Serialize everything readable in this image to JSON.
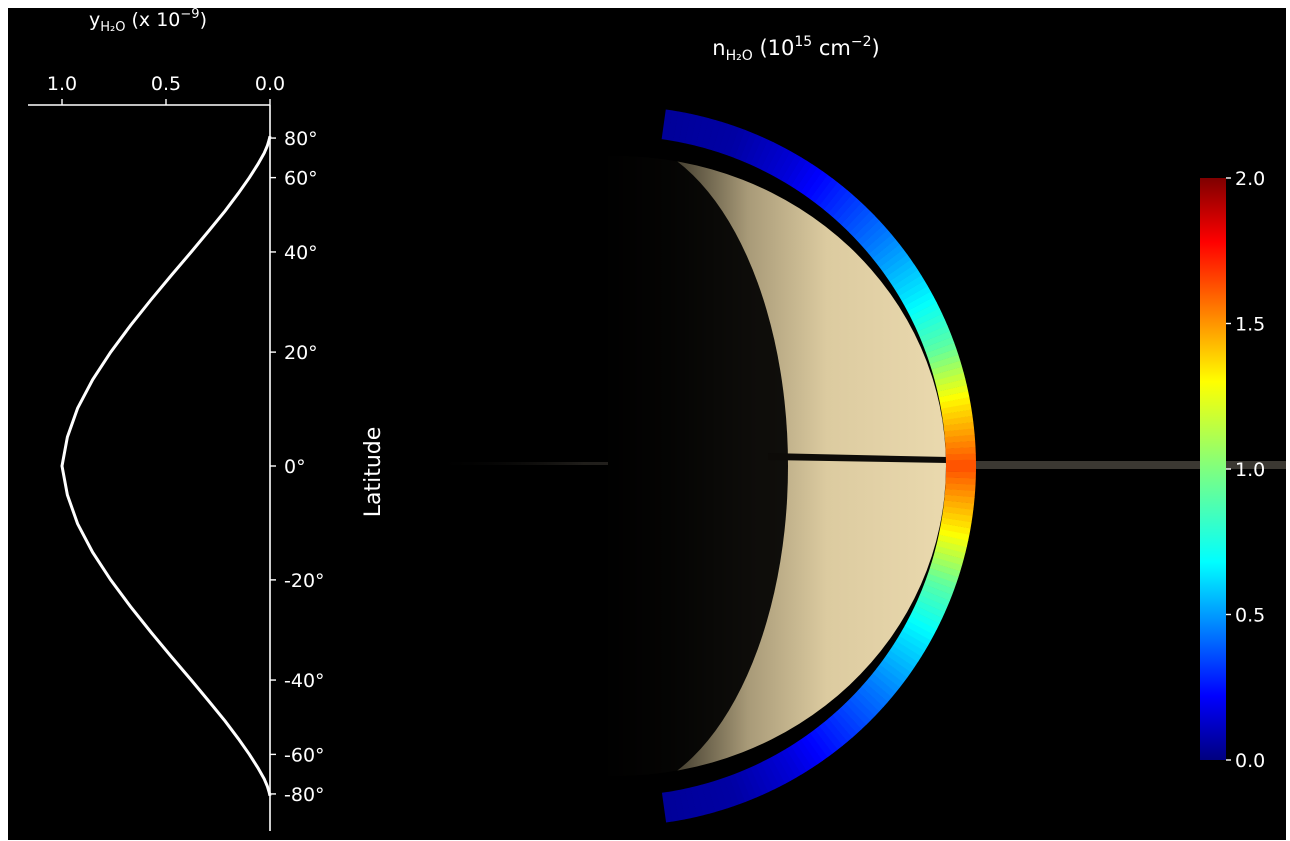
{
  "chart_data": [
    {
      "type": "line",
      "title": "",
      "xlabel_parts": {
        "base": "y",
        "sub": "H₂O",
        "rest": " (x 10",
        "exp": "−9",
        "close": ")"
      },
      "x_ticks": [
        "1.0",
        "0.5",
        "0.0"
      ],
      "x_tick_values": [
        1.0,
        0.5,
        0.0
      ],
      "xlim": [
        1.12,
        0.0
      ],
      "ylabel": "Latitude",
      "y_ticks": [
        "80°",
        "60°",
        "40°",
        "20°",
        "0°",
        "-20°",
        "-40°",
        "-60°",
        "-80°"
      ],
      "y_tick_values": [
        80,
        60,
        40,
        20,
        0,
        -20,
        -40,
        -60,
        -80
      ],
      "ylim": [
        -90,
        90
      ],
      "axis_scale": "sine of latitude",
      "line_color": "#ffffff",
      "series": [
        {
          "lat": [
            -82,
            -78,
            -74,
            -70,
            -65,
            -60,
            -55,
            -50,
            -45,
            -40,
            -35,
            -30,
            -25,
            -20,
            -15,
            -10,
            -5,
            0,
            5,
            10,
            15,
            20,
            25,
            30,
            35,
            40,
            45,
            50,
            55,
            60,
            65,
            70,
            74,
            78,
            82
          ],
          "y": [
            0.0,
            0.005,
            0.013,
            0.028,
            0.058,
            0.099,
            0.152,
            0.216,
            0.293,
            0.379,
            0.473,
            0.571,
            0.67,
            0.766,
            0.853,
            0.925,
            0.974,
            1.0,
            0.974,
            0.925,
            0.853,
            0.766,
            0.67,
            0.571,
            0.473,
            0.379,
            0.293,
            0.216,
            0.152,
            0.099,
            0.058,
            0.028,
            0.013,
            0.005,
            0.0
          ]
        }
      ]
    },
    {
      "type": "heatmap",
      "title_parts": {
        "base": "n",
        "sub": "H₂O",
        "rest": " (10",
        "exp": "15",
        "unit": " cm",
        "unit_exp": "−2",
        "close": ")"
      },
      "colormap": "jet",
      "clim": [
        0.0,
        2.0
      ],
      "colorbar_ticks": [
        "0.0",
        "0.5",
        "1.0",
        "1.5",
        "2.0"
      ],
      "colorbar_tick_values": [
        0.0,
        0.5,
        1.0,
        1.5,
        2.0
      ],
      "colorbar_position": "right",
      "background_image": "Saturn crescent with rings",
      "profile": {
        "lat": [
          -82,
          -70,
          -60,
          -50,
          -40,
          -30,
          -20,
          -10,
          0,
          10,
          20,
          30,
          40,
          50,
          60,
          70,
          82
        ],
        "value": [
          0.05,
          0.07,
          0.17,
          0.33,
          0.5,
          0.7,
          0.93,
          1.3,
          1.6,
          1.3,
          0.93,
          0.7,
          0.5,
          0.33,
          0.17,
          0.07,
          0.05
        ]
      }
    }
  ]
}
